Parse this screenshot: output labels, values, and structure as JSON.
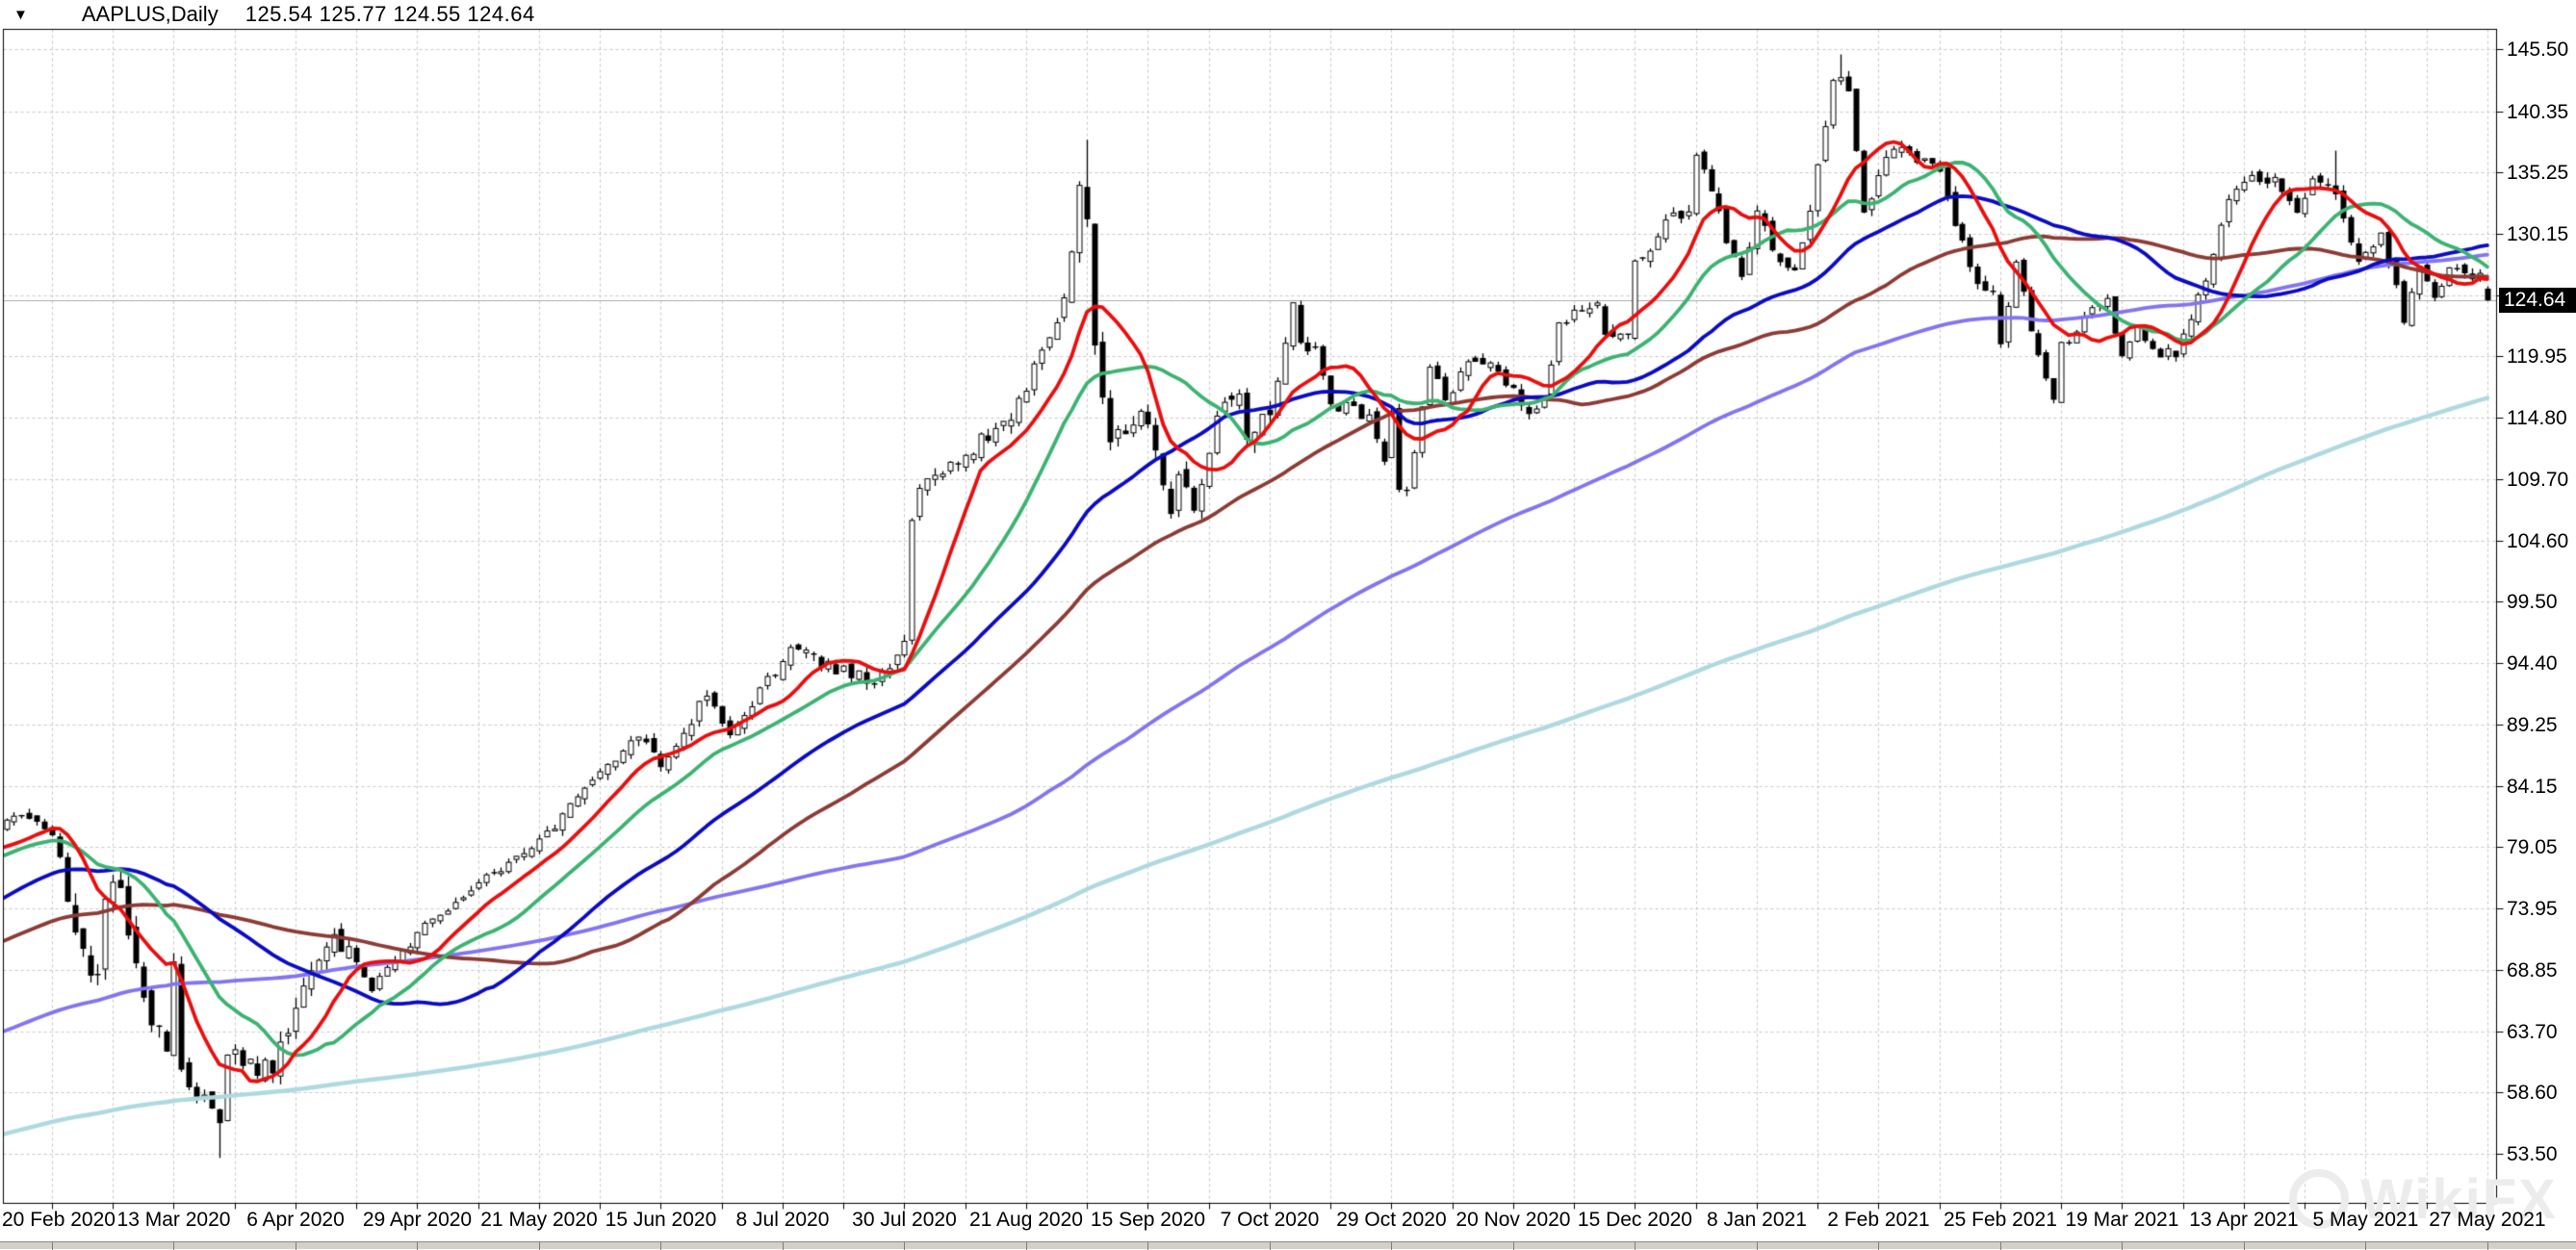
{
  "window": {
    "symbol_period": "AAPLUS,Daily",
    "ohlc": "125.54 125.77 124.55 124.64",
    "dropdown_icon": "▼"
  },
  "price_scale": {
    "current_label": "124.64",
    "current_value": 124.64
  },
  "watermark": {
    "text": "WikiFX"
  },
  "colors": {
    "background": "#ffffff",
    "grid": "#c9c9c9",
    "frame": "#000000",
    "price_line": "#adadad",
    "candle_up": "#ffffff",
    "candle_down": "#000000",
    "candle_outline": "#000000",
    "price_box_bg": "#000000",
    "price_box_text": "#ffffff",
    "watermark": "#ececec"
  },
  "chart_data": {
    "type": "candlestick",
    "symbol": "AAPLUS",
    "timeframe": "Daily",
    "last_bar": {
      "open": 125.54,
      "high": 125.77,
      "low": 124.55,
      "close": 124.64
    },
    "ylim": [
      49.37,
      147.18
    ],
    "y_ticks": [
      {
        "v": 145.5,
        "label": "145.50"
      },
      {
        "v": 140.35,
        "label": "140.35"
      },
      {
        "v": 135.25,
        "label": "135.25"
      },
      {
        "v": 130.15,
        "label": "130.15"
      },
      {
        "v": 125.05,
        "label": null
      },
      {
        "v": 119.95,
        "label": "119.95"
      },
      {
        "v": 114.8,
        "label": "114.80"
      },
      {
        "v": 109.7,
        "label": "109.70"
      },
      {
        "v": 104.6,
        "label": "104.60"
      },
      {
        "v": 99.5,
        "label": "99.50"
      },
      {
        "v": 94.4,
        "label": "94.40"
      },
      {
        "v": 89.25,
        "label": "89.25"
      },
      {
        "v": 84.15,
        "label": "84.15"
      },
      {
        "v": 79.05,
        "label": "79.05"
      },
      {
        "v": 73.95,
        "label": "73.95"
      },
      {
        "v": 68.85,
        "label": "68.85"
      },
      {
        "v": 63.7,
        "label": "63.70"
      },
      {
        "v": 58.6,
        "label": "58.60"
      },
      {
        "v": 53.5,
        "label": "53.50"
      }
    ],
    "x_labels": [
      "20 Feb 2020",
      "13 Mar 2020",
      "6 Apr 2020",
      "29 Apr 2020",
      "21 May 2020",
      "15 Jun 2020",
      "8 Jul 2020",
      "30 Jul 2020",
      "21 Aug 2020",
      "15 Sep 2020",
      "7 Oct 2020",
      "29 Oct 2020",
      "20 Nov 2020",
      "15 Dec 2020",
      "8 Jan 2021",
      "2 Feb 2021",
      "25 Feb 2021",
      "19 Mar 2021",
      "13 Apr 2021",
      "5 May 2021",
      "27 May 2021"
    ],
    "bars_per_label": 16,
    "moving_averages": [
      {
        "name": "ma-fast",
        "period": 10,
        "color": "#ea0e0e"
      },
      {
        "name": "ma-medium",
        "period": 21,
        "color": "#3cb371"
      },
      {
        "name": "ma-slow",
        "period": 42,
        "color": "#0b0bc4"
      },
      {
        "name": "ma-slower",
        "period": 65,
        "color": "#8d3b35"
      },
      {
        "name": "ma-long",
        "period": 125,
        "color": "#8374f2"
      },
      {
        "name": "ma-very-long",
        "period": 260,
        "color": "#aed9e0"
      }
    ],
    "series_anchors": [
      [
        -266,
        38.6
      ],
      [
        -245,
        43.3
      ],
      [
        -225,
        47.5
      ],
      [
        -205,
        51.0
      ],
      [
        -185,
        44.7
      ],
      [
        -175,
        47.5
      ],
      [
        -160,
        49.5
      ],
      [
        -140,
        51.9
      ],
      [
        -130,
        50.2
      ],
      [
        -120,
        50.7
      ],
      [
        -105,
        54.9
      ],
      [
        -90,
        56.8
      ],
      [
        -70,
        64.4
      ],
      [
        -50,
        64.9
      ],
      [
        -30,
        75.1
      ],
      [
        -15,
        79.6
      ],
      [
        -10,
        77.4
      ],
      [
        -6,
        81.3
      ],
      [
        -2,
        81.2
      ],
      [
        0,
        80.07
      ],
      [
        1,
        78.26
      ],
      [
        2,
        74.54
      ],
      [
        5,
        68.38
      ],
      [
        6,
        68.34
      ],
      [
        7,
        74.7
      ],
      [
        9,
        75.68
      ],
      [
        12,
        66.54
      ],
      [
        15,
        62.06
      ],
      [
        16,
        69.49
      ],
      [
        17,
        60.55
      ],
      [
        21,
        57.31
      ],
      [
        22,
        56.09
      ],
      [
        23,
        61.72
      ],
      [
        29,
        60.23
      ],
      [
        32,
        65.62
      ],
      [
        37,
        71.76
      ],
      [
        42,
        67.09
      ],
      [
        48,
        71.93
      ],
      [
        58,
        76.91
      ],
      [
        64,
        79.72
      ],
      [
        77,
        88.21
      ],
      [
        80,
        85.75
      ],
      [
        86,
        91.63
      ],
      [
        89,
        88.41
      ],
      [
        97,
        95.68
      ],
      [
        108,
        92.61
      ],
      [
        111,
        95.04
      ],
      [
        112,
        96.19
      ],
      [
        113,
        106.26
      ],
      [
        114,
        108.94
      ],
      [
        118,
        111.11
      ],
      [
        126,
        114.61
      ],
      [
        133,
        124.81
      ],
      [
        135,
        134.18
      ],
      [
        136,
        131.4
      ],
      [
        137,
        120.88
      ],
      [
        139,
        112.82
      ],
      [
        141,
        113.49
      ],
      [
        143,
        115.36
      ],
      [
        145,
        112.13
      ],
      [
        147,
        106.84
      ],
      [
        148,
        110.08
      ],
      [
        150,
        107.12
      ],
      [
        153,
        114.96
      ],
      [
        156,
        116.79
      ],
      [
        157,
        113.02
      ],
      [
        160,
        115.08
      ],
      [
        163,
        124.4
      ],
      [
        164,
        121.1
      ],
      [
        166,
        120.71
      ],
      [
        168,
        115.98
      ],
      [
        173,
        115.05
      ],
      [
        175,
        111.2
      ],
      [
        176,
        115.32
      ],
      [
        177,
        108.86
      ],
      [
        178,
        108.77
      ],
      [
        181,
        119.03
      ],
      [
        183,
        116.32
      ],
      [
        186,
        119.49
      ],
      [
        189,
        119.39
      ],
      [
        192,
        117.34
      ],
      [
        194,
        115.17
      ],
      [
        196,
        116.59
      ],
      [
        198,
        122.72
      ],
      [
        203,
        124.38
      ],
      [
        204,
        121.78
      ],
      [
        207,
        121.78
      ],
      [
        208,
        127.88
      ],
      [
        210,
        128.7
      ],
      [
        213,
        131.88
      ],
      [
        215,
        131.97
      ],
      [
        216,
        136.69
      ],
      [
        218,
        133.72
      ],
      [
        220,
        129.41
      ],
      [
        222,
        126.6
      ],
      [
        224,
        132.05
      ],
      [
        226,
        128.8
      ],
      [
        229,
        127.14
      ],
      [
        231,
        132.03
      ],
      [
        233,
        139.07
      ],
      [
        234,
        142.92
      ],
      [
        235,
        143.16
      ],
      [
        236,
        142.06
      ],
      [
        237,
        137.09
      ],
      [
        238,
        131.96
      ],
      [
        240,
        134.99
      ],
      [
        242,
        137.19
      ],
      [
        244,
        136.91
      ],
      [
        248,
        135.37
      ],
      [
        250,
        130.84
      ],
      [
        253,
        126.0
      ],
      [
        255,
        125.35
      ],
      [
        256,
        120.99
      ],
      [
        258,
        127.79
      ],
      [
        260,
        122.06
      ],
      [
        263,
        116.36
      ],
      [
        264,
        121.09
      ],
      [
        266,
        121.96
      ],
      [
        268,
        123.99
      ],
      [
        270,
        124.76
      ],
      [
        272,
        119.99
      ],
      [
        274,
        122.54
      ],
      [
        276,
        120.59
      ],
      [
        279,
        119.9
      ],
      [
        281,
        123.0
      ],
      [
        283,
        126.21
      ],
      [
        286,
        133.0
      ],
      [
        288,
        134.43
      ],
      [
        290,
        134.5
      ],
      [
        292,
        134.84
      ],
      [
        295,
        131.94
      ],
      [
        297,
        134.72
      ],
      [
        300,
        133.48
      ],
      [
        301,
        131.46
      ],
      [
        303,
        127.85
      ],
      [
        306,
        130.21
      ],
      [
        308,
        125.91
      ],
      [
        309,
        122.77
      ],
      [
        311,
        127.45
      ],
      [
        313,
        124.85
      ],
      [
        315,
        127.31
      ],
      [
        317,
        126.9
      ],
      [
        319,
        126.85
      ],
      [
        320,
        124.64
      ]
    ],
    "bar_overrides": {
      "22": {
        "l": 53.15
      },
      "136": {
        "h": 137.98
      },
      "235": {
        "h": 145.09
      },
      "300": {
        "h": 137.07
      },
      "320": {
        "o": 125.54,
        "h": 125.77,
        "l": 124.55,
        "c": 124.64
      }
    },
    "volatility_zones": [
      [
        -267,
        2,
        0.01
      ],
      [
        3,
        40,
        0.026
      ],
      [
        41,
        133,
        0.011
      ],
      [
        134,
        160,
        0.013
      ],
      [
        161,
        250,
        0.008
      ],
      [
        251,
        320,
        0.0075
      ]
    ]
  }
}
